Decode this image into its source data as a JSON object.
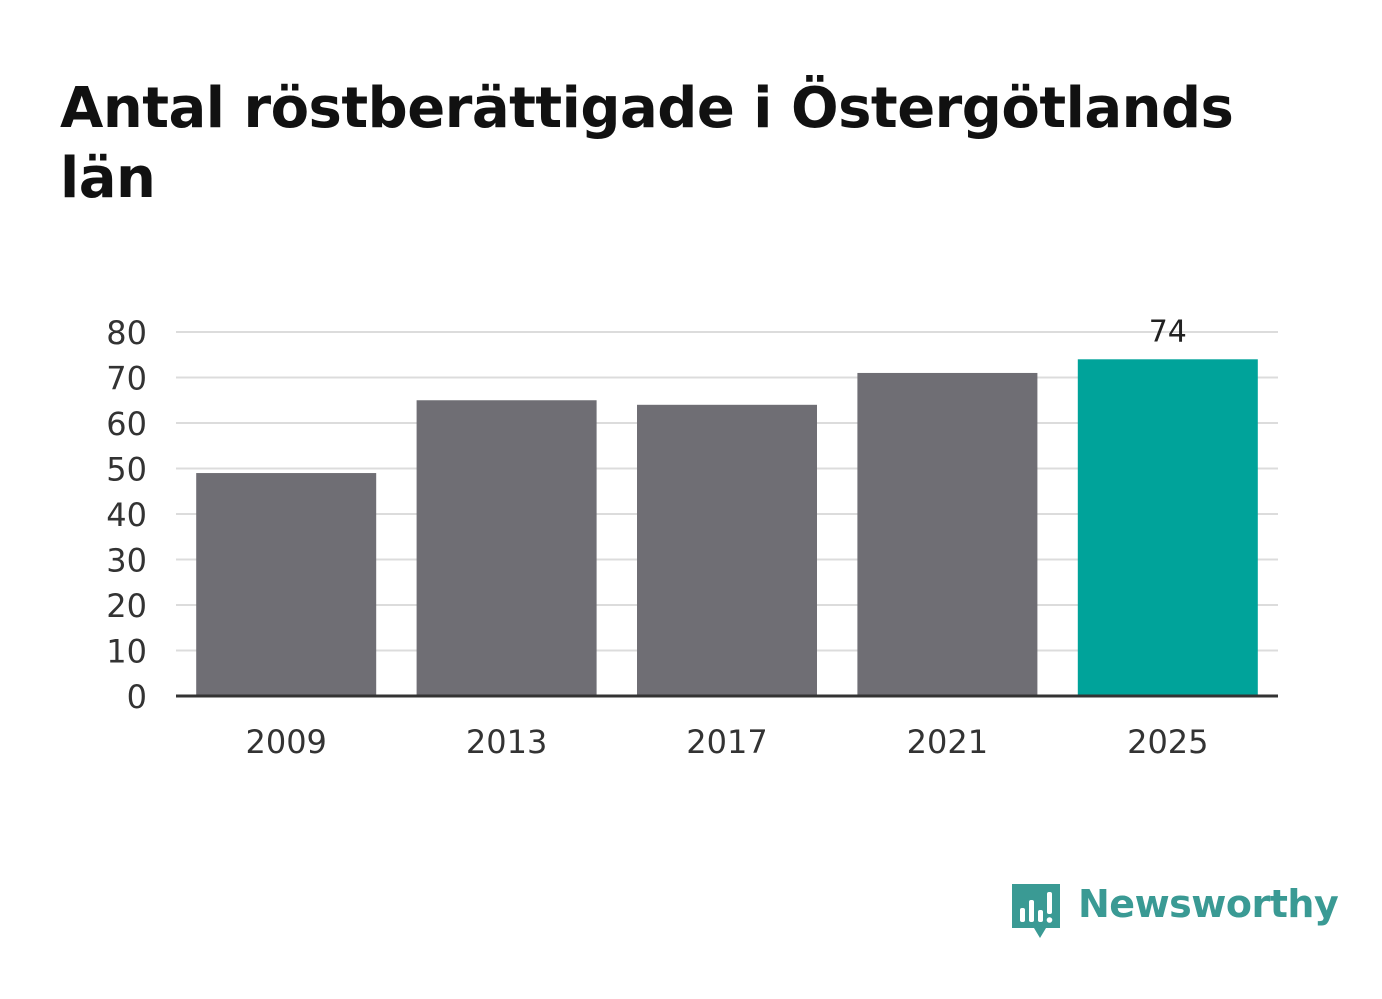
{
  "title": "Antal röstberättigade i Östergötlands län",
  "brand": {
    "name": "Newsworthy",
    "logo_icon": "bar-chart-speech-bubble-icon",
    "color": "#3a9a94"
  },
  "colors": {
    "bar_default": "#6f6e74",
    "bar_highlight": "#00a39a",
    "gridline": "#dcdcdc",
    "axis": "#333333",
    "text": "#333333"
  },
  "chart_data": {
    "type": "bar",
    "categories": [
      "2009",
      "2013",
      "2017",
      "2021",
      "2025"
    ],
    "values": [
      49,
      65,
      64,
      71,
      74
    ],
    "highlight_index": 4,
    "data_labels": [
      {
        "index": 4,
        "text": "74"
      }
    ],
    "yticks": [
      "0",
      "10",
      "20",
      "30",
      "40",
      "50",
      "60",
      "70",
      "80"
    ],
    "ylim": [
      0,
      80
    ],
    "grid": true,
    "legend": "none",
    "xlabel": "",
    "ylabel": ""
  }
}
